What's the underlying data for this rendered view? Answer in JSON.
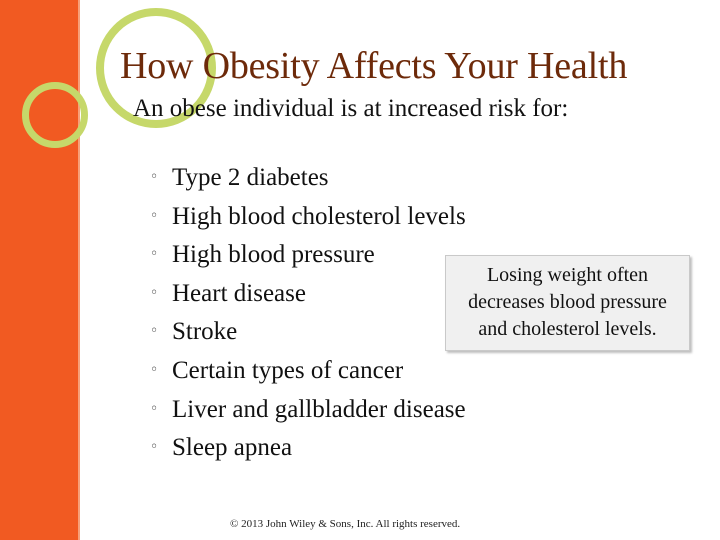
{
  "slide": {
    "title": "How Obesity Affects Your Health",
    "intro_bullet": "",
    "intro_text": "An obese individual is at increased risk for:",
    "sub_bullet": "◦",
    "risks": [
      "Type 2 diabetes",
      "High blood cholesterol levels",
      "High blood pressure",
      "Heart disease",
      "Stroke",
      "Certain types of cancer",
      "Liver and gallbladder disease",
      "Sleep apnea"
    ],
    "callout_lines": [
      "Losing weight often",
      "decreases blood pressure",
      "and cholesterol levels."
    ],
    "footer": "© 2013 John Wiley & Sons, Inc. All rights reserved."
  },
  "colors": {
    "accent_orange": "#f15a22",
    "ring_green": "#c6d86a",
    "title_brown": "#6d2a0a"
  }
}
